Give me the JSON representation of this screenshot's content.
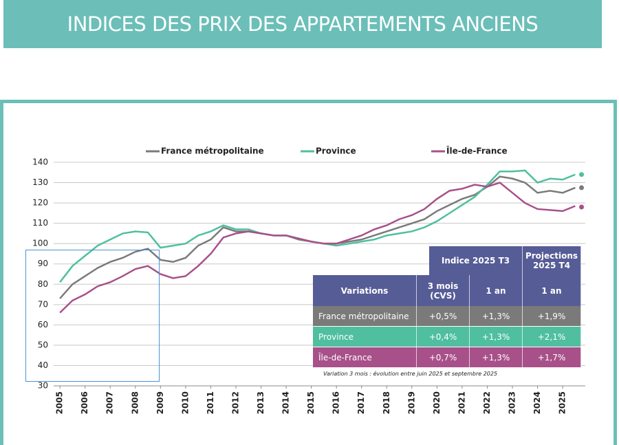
{
  "header": {
    "title": "INDICES DES PRIX DES APPARTEMENTS ANCIENS"
  },
  "chart_data": {
    "type": "line",
    "x": [
      2005,
      2005.5,
      2006,
      2006.5,
      2007,
      2007.5,
      2008,
      2008.5,
      2009,
      2009.5,
      2010,
      2010.5,
      2011,
      2011.5,
      2012,
      2012.5,
      2013,
      2013.5,
      2014,
      2014.5,
      2015,
      2015.5,
      2016,
      2016.5,
      2017,
      2017.5,
      2018,
      2018.5,
      2019,
      2019.5,
      2020,
      2020.5,
      2021,
      2021.5,
      2022,
      2022.5,
      2023,
      2023.5,
      2024,
      2024.5,
      2025,
      2025.5
    ],
    "projection_x": 2025.75,
    "series": [
      {
        "name": "France métropolitaine",
        "color": "#7a7a7a",
        "values": [
          73,
          80,
          84,
          88,
          91,
          93,
          96,
          97.5,
          92,
          91,
          93,
          99,
          102,
          108,
          106,
          106,
          105,
          104,
          104,
          102,
          101,
          100,
          100,
          101,
          102,
          104,
          106,
          108,
          110,
          112,
          116,
          119,
          122,
          124,
          128,
          133,
          132,
          130,
          125,
          126,
          125,
          127.5
        ],
        "projection": 127.5
      },
      {
        "name": "Province",
        "color": "#4fbf9f",
        "values": [
          81,
          89,
          94,
          99,
          102,
          105,
          106,
          105.5,
          98,
          99,
          100,
          104,
          106,
          109,
          107,
          107,
          105,
          104,
          104,
          102.5,
          101,
          100,
          99,
          100,
          101,
          102,
          104,
          105,
          106,
          108,
          111,
          115,
          119,
          123,
          129,
          135.5,
          135.5,
          136,
          130,
          132,
          131.5,
          134
        ],
        "projection": 134
      },
      {
        "name": "Île-de-France",
        "color": "#a8508a",
        "values": [
          66,
          72,
          75,
          79,
          81,
          84,
          87.5,
          89,
          85,
          83,
          84,
          89,
          95,
          103,
          105,
          106,
          105,
          104,
          104,
          102.5,
          101,
          100,
          100,
          102,
          104,
          107,
          109,
          112,
          114,
          117,
          122,
          126,
          127,
          129,
          128,
          130,
          125,
          120,
          117,
          116.5,
          116,
          118.5
        ],
        "projection": 118
      }
    ],
    "xlim": [
      2004.75,
      2025.9
    ],
    "xticks": [
      2005,
      2006,
      2007,
      2008,
      2009,
      2010,
      2011,
      2012,
      2013,
      2014,
      2015,
      2016,
      2017,
      2018,
      2019,
      2020,
      2021,
      2022,
      2023,
      2024,
      2025
    ],
    "ylim": [
      30,
      140
    ],
    "yticks": [
      30,
      40,
      50,
      60,
      70,
      80,
      90,
      100,
      110,
      120,
      130,
      140
    ],
    "grid": true
  },
  "table": {
    "group_headers": [
      "Indice 2025 T3",
      "Projections 2025 T4"
    ],
    "headers": [
      "Variations",
      "3 mois (CVS)",
      "1 an",
      "1 an"
    ],
    "rows": [
      [
        "France métropolitaine",
        "+0,5%",
        "+1,3%",
        "+1,9%"
      ],
      [
        "Province",
        "+0,4%",
        "+1,3%",
        "+2,1%"
      ],
      [
        "Île-de-France",
        "+0,7%",
        "+1,3%",
        "+1,7%"
      ]
    ],
    "note": "Variation 3 mois : évolution entre juin 2025 et septembre 2025"
  }
}
